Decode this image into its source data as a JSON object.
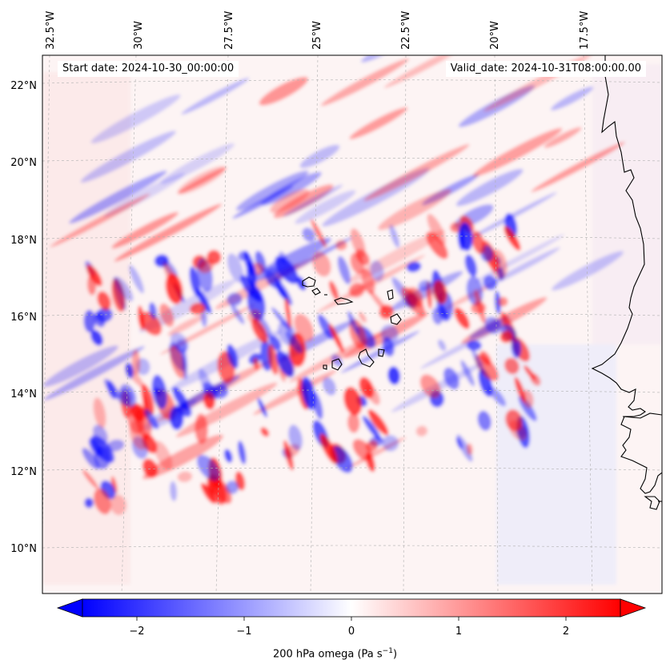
{
  "map": {
    "start_date": "Start date: 2024-10-30_00:00:00",
    "valid_date": "Valid_date: 2024-10-31T08:00:00.00",
    "lon_labels": [
      "32.5°W",
      "30°W",
      "27.5°W",
      "25°W",
      "22.5°W",
      "20°W",
      "17.5°W"
    ],
    "lat_labels": [
      "22°N",
      "20°N",
      "18°N",
      "16°N",
      "14°N",
      "12°N",
      "10°N"
    ],
    "field": "200 hPa omega",
    "colormap": "bwr",
    "colors": {
      "negative": "#0000ff",
      "zero": "#ffffff",
      "positive": "#ff0000",
      "coast": "#000000",
      "grid": "#b0b0b0"
    },
    "colorbar": {
      "ticks": [
        "−2",
        "−1",
        "0",
        "1",
        "2"
      ],
      "range": [
        -2.7,
        2.7
      ],
      "label_prefix": "200 hPa omega (Pa s",
      "label_exp": "−1",
      "label_suffix": ")"
    }
  }
}
